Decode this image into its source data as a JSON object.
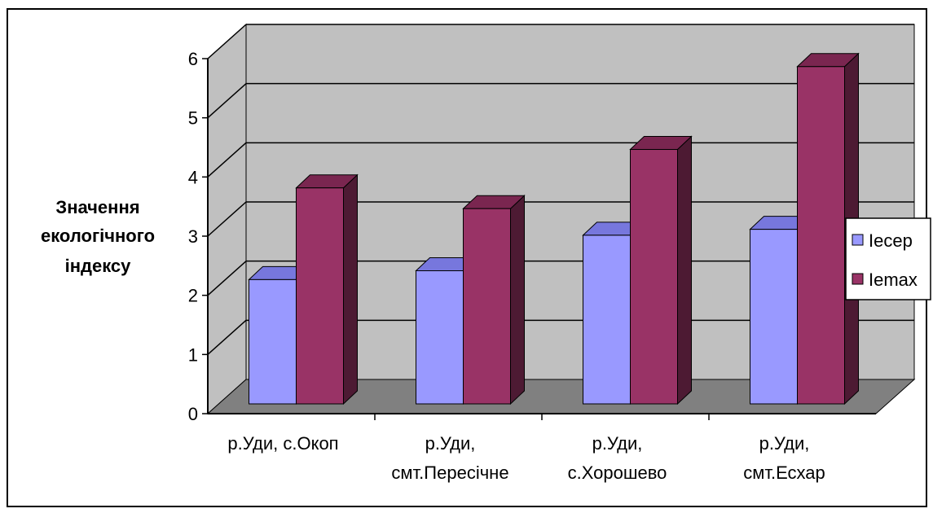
{
  "chart_data": {
    "type": "bar",
    "three_d": true,
    "title": "",
    "xlabel": "",
    "ylabel_lines": [
      "Значення",
      "екологічного",
      "індексу"
    ],
    "categories": [
      [
        "р.Уди, с.Окоп"
      ],
      [
        "р.Уди,",
        "смт.Пересічне"
      ],
      [
        "р.Уди,",
        "с.Хорошево"
      ],
      [
        "р.Уди,",
        "смт.Есхар"
      ]
    ],
    "series": [
      {
        "name": "Iecep",
        "values": [
          2.1,
          2.25,
          2.85,
          2.95
        ],
        "color": "#9999FF",
        "top_color": "#7777DD",
        "side_color": "#5A5AB0"
      },
      {
        "name": "Iemax",
        "values": [
          3.65,
          3.3,
          4.3,
          5.7
        ],
        "color": "#993366",
        "top_color": "#7A2650",
        "side_color": "#4D1A33"
      }
    ],
    "ylim": [
      0,
      6
    ],
    "yticks": [
      "0",
      "1",
      "2",
      "3",
      "4",
      "5",
      "6"
    ],
    "grid": true,
    "legend_position": "right",
    "colors": {
      "wall": "#C0C0C0",
      "floor": "#808080",
      "gridline": "#000000"
    }
  }
}
